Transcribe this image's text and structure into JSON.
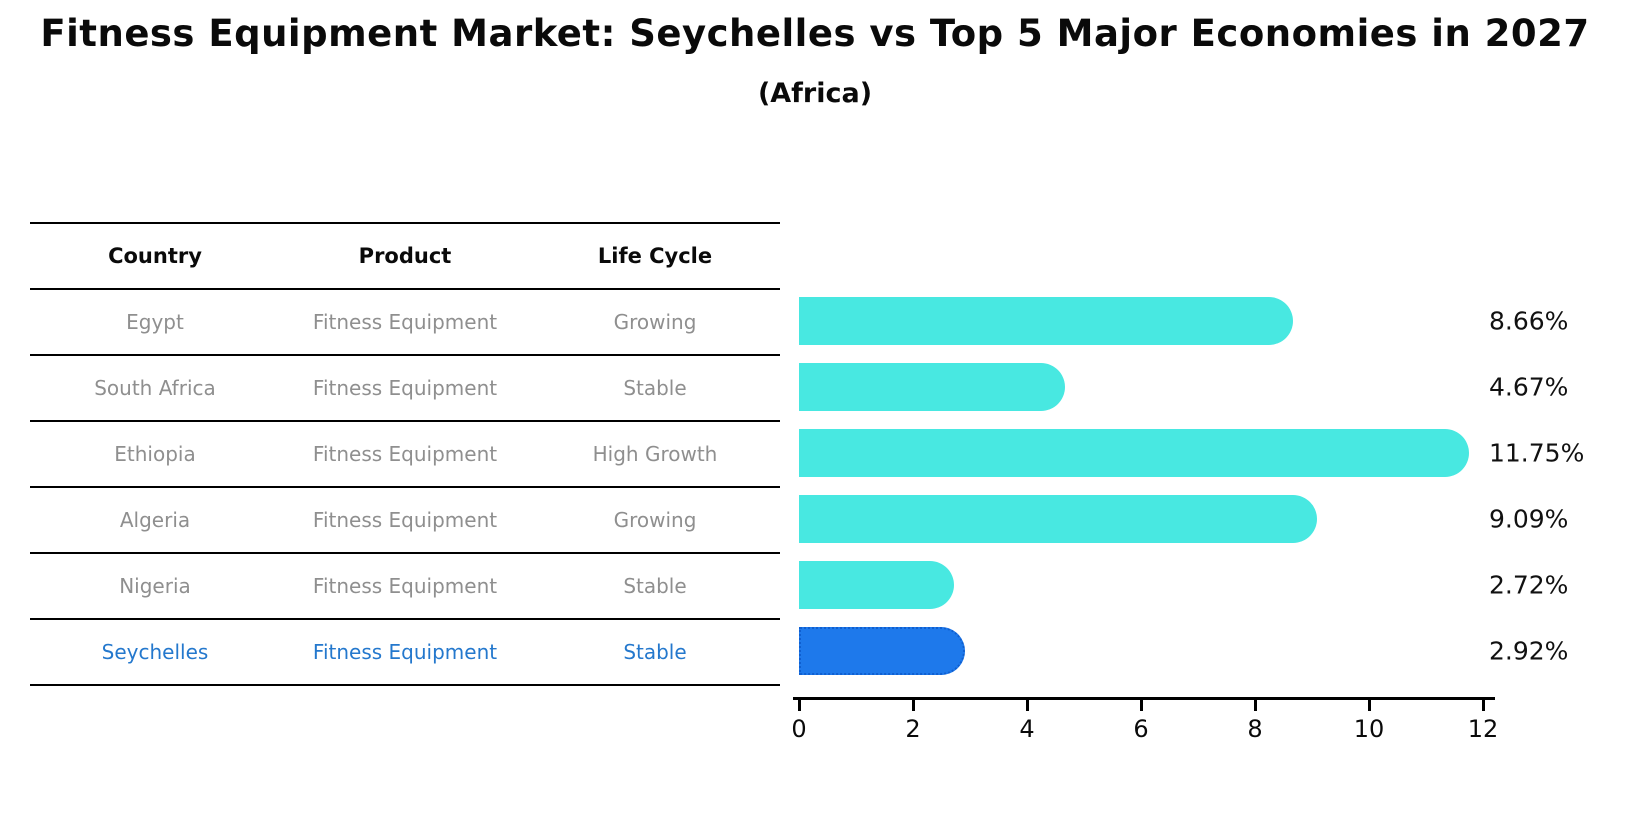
{
  "title": "Fitness Equipment Market: Seychelles vs Top 5 Major Economies in 2027",
  "subtitle": "(Africa)",
  "table": {
    "headers": [
      "Country",
      "Product",
      "Life Cycle"
    ],
    "rows": [
      {
        "country": "Egypt",
        "product": "Fitness Equipment",
        "life_cycle": "Growing"
      },
      {
        "country": "South Africa",
        "product": "Fitness Equipment",
        "life_cycle": "Stable"
      },
      {
        "country": "Ethiopia",
        "product": "Fitness Equipment",
        "life_cycle": "High Growth"
      },
      {
        "country": "Algeria",
        "product": "Fitness Equipment",
        "life_cycle": "Growing"
      },
      {
        "country": "Nigeria",
        "product": "Fitness Equipment",
        "life_cycle": "Stable"
      },
      {
        "country": "Seychelles",
        "product": "Fitness Equipment",
        "life_cycle": "Stable"
      }
    ]
  },
  "chart_data": {
    "type": "bar",
    "orientation": "horizontal",
    "title": "Fitness Equipment Market: Seychelles vs Top 5 Major Economies in 2027",
    "subtitle": "(Africa)",
    "categories": [
      "Egypt",
      "South Africa",
      "Ethiopia",
      "Algeria",
      "Nigeria",
      "Seychelles"
    ],
    "values": [
      8.66,
      4.67,
      11.75,
      9.09,
      2.72,
      2.92
    ],
    "value_labels": [
      "8.66%",
      "4.67%",
      "11.75%",
      "9.09%",
      "2.72%",
      "2.92%"
    ],
    "xlabel": "",
    "ylabel": "",
    "xlim": [
      0,
      12.4
    ],
    "xticks": [
      0,
      2,
      4,
      6,
      8,
      10,
      12
    ],
    "grid": false,
    "legend": false,
    "bar_color": "#48e8e1",
    "highlight_index": 5,
    "highlight_color": "#1e79eb",
    "highlight_border_color": "#0f5fd0",
    "highlight_border_style": "dotted",
    "text_color_rows": "#8f8f8f",
    "text_color_highlight_row": "#2478cd"
  }
}
